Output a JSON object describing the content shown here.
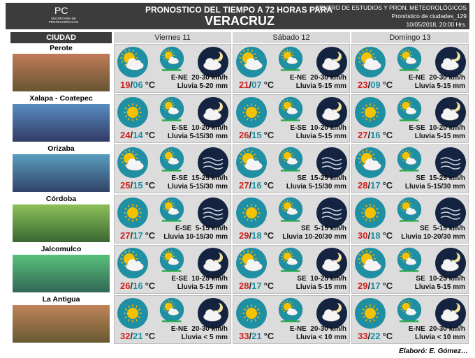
{
  "header": {
    "logo": "PC",
    "logo_sub": "SECRETARÍA DE PROTECCIÓN CIVIL",
    "title": "PRONOSTICO DEL TIEMPO A 72 HORAS PARA",
    "subtitle": "VERACRUZ",
    "org": "CENTRO DE ESTUDIOS Y PRON. METEOROLÓGICOS",
    "doc": "Pronóstico de ciudades_129",
    "date": "10/05/2018, 20:00 Hrs."
  },
  "columns": [
    "CIUDAD",
    "Viernes 11",
    "Sábado 12",
    "Domingo 13"
  ],
  "temp_sep": "/",
  "unit": "°C",
  "rows": [
    {
      "city": "Perote",
      "days": [
        {
          "max": "19",
          "min": "06",
          "wind": "E-NE  20-30 km/h",
          "rain": "Lluvia 5-20 mm"
        },
        {
          "max": "21",
          "min": "07",
          "wind": "E-NE  20-30 km/h",
          "rain": "Lluvia 5-15 mm"
        },
        {
          "max": "23",
          "min": "09",
          "wind": "E-NE  20-30 km/h",
          "rain": "Lluvia 5-15 mm"
        }
      ]
    },
    {
      "city": "Xalapa - Coatepec",
      "days": [
        {
          "max": "24",
          "min": "14",
          "wind": "E-SE  10-20 km/h",
          "rain": "Lluvia 5-15/30 mm"
        },
        {
          "max": "26",
          "min": "15",
          "wind": "E-SE  10-20 km/h",
          "rain": "Lluvia 5-15 mm"
        },
        {
          "max": "27",
          "min": "16",
          "wind": "E-SE  10-20 km/h",
          "rain": "Lluvia 5-15 mm"
        }
      ]
    },
    {
      "city": "Orizaba",
      "days": [
        {
          "max": "25",
          "min": "15",
          "wind": "E-SE  15-25 km/h",
          "rain": "Lluvia 5-15/30 mm"
        },
        {
          "max": "27",
          "min": "16",
          "wind": "SE  15-25 km/h",
          "rain": "Lluvia 5-15/30 mm"
        },
        {
          "max": "28",
          "min": "17",
          "wind": "SE  15-25 km/h",
          "rain": "Lluvia 5-15/30 mm"
        }
      ]
    },
    {
      "city": "Córdoba",
      "days": [
        {
          "max": "27",
          "min": "17",
          "wind": "E-SE  5-15 km/h",
          "rain": "Lluvia 10-15/30 mm"
        },
        {
          "max": "29",
          "min": "18",
          "wind": "SE  5-15 km/h",
          "rain": "Lluvia 10-20/30 mm"
        },
        {
          "max": "30",
          "min": "18",
          "wind": "SE  5-15 km/h",
          "rain": "Lluvia 10-20/30 mm"
        }
      ]
    },
    {
      "city": "Jalcomulco",
      "days": [
        {
          "max": "26",
          "min": "16",
          "wind": "E-SE  10-25 km/h",
          "rain": "Lluvia 5-15 mm"
        },
        {
          "max": "28",
          "min": "17",
          "wind": "SE  10-25 km/h",
          "rain": "Lluvia 5-15 mm"
        },
        {
          "max": "29",
          "min": "17",
          "wind": "SE  10-25 km/h",
          "rain": "Lluvia 5-15 mm"
        }
      ]
    },
    {
      "city": "La Antigua",
      "days": [
        {
          "max": "32",
          "min": "21",
          "wind": "E-NE  20-30 km/h",
          "rain": "Lluvia < 5 mm"
        },
        {
          "max": "33",
          "min": "21",
          "wind": "E-NE  20-30 km/h",
          "rain": "Lluvia < 10 mm"
        },
        {
          "max": "33",
          "min": "22",
          "wind": "E-NE  20-30 km/h",
          "rain": "Lluvia < 10 mm"
        }
      ]
    }
  ],
  "footer": "Elaboró: E. Gómez…"
}
